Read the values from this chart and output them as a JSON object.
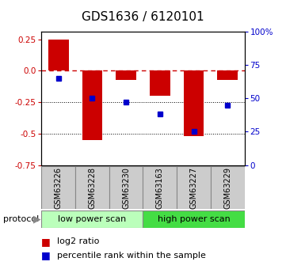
{
  "title": "GDS1636 / 6120101",
  "samples": [
    "GSM63226",
    "GSM63228",
    "GSM63230",
    "GSM63163",
    "GSM63227",
    "GSM63229"
  ],
  "log2_ratio": [
    0.25,
    -0.55,
    -0.07,
    -0.2,
    -0.52,
    -0.07
  ],
  "percentile_rank": [
    65,
    50,
    47,
    38,
    25,
    45
  ],
  "bar_color": "#cc0000",
  "dot_color": "#0000cc",
  "ylim_left": [
    -0.75,
    0.3125
  ],
  "ylim_right": [
    0,
    100
  ],
  "yticks_left": [
    0.25,
    0.0,
    -0.25,
    -0.5,
    -0.75
  ],
  "yticks_right": [
    100,
    75,
    50,
    25,
    0
  ],
  "legend_log2": "log2 ratio",
  "legend_pct": "percentile rank within the sample",
  "zero_line_color": "#cc0000",
  "grid_color": "#000000",
  "bar_width": 0.6,
  "title_fontsize": 11,
  "tick_fontsize": 7.5,
  "sample_fontsize": 7,
  "protocol_fontsize": 8,
  "legend_fontsize": 8,
  "lps_color": "#bbffbb",
  "hps_color": "#44dd44",
  "sample_box_color": "#cccccc",
  "sample_box_edge": "#888888"
}
